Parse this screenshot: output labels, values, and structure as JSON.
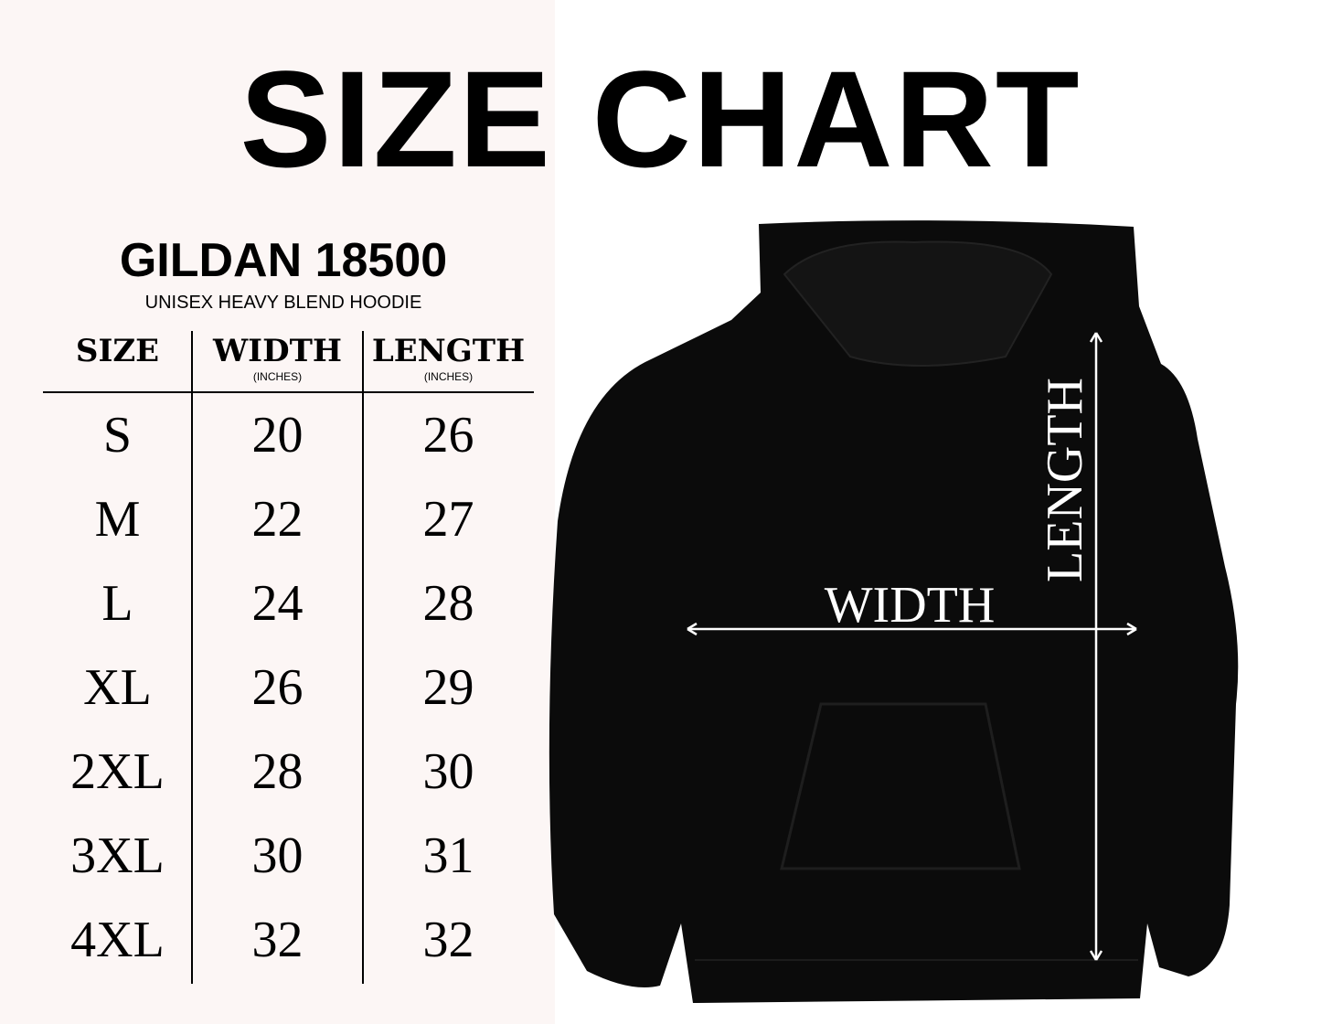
{
  "title": "SIZE CHART",
  "brand": "GILDAN 18500",
  "subtitle": "UNISEX HEAVY BLEND HOODIE",
  "table": {
    "headers": [
      {
        "label": "SIZE",
        "unit": ""
      },
      {
        "label": "WIDTH",
        "unit": "(INCHES)"
      },
      {
        "label": "LENGTH",
        "unit": "(INCHES)"
      }
    ],
    "rows": [
      {
        "size": "S",
        "width": "20",
        "length": "26"
      },
      {
        "size": "M",
        "width": "22",
        "length": "27"
      },
      {
        "size": "L",
        "width": "24",
        "length": "28"
      },
      {
        "size": "XL",
        "width": "26",
        "length": "29"
      },
      {
        "size": "2XL",
        "width": "28",
        "length": "30"
      },
      {
        "size": "3XL",
        "width": "30",
        "length": "31"
      },
      {
        "size": "4XL",
        "width": "32",
        "length": "32"
      }
    ]
  },
  "diagram": {
    "width_label": "WIDTH",
    "length_label": "LENGTH",
    "garment_color": "#0b0b0b"
  }
}
